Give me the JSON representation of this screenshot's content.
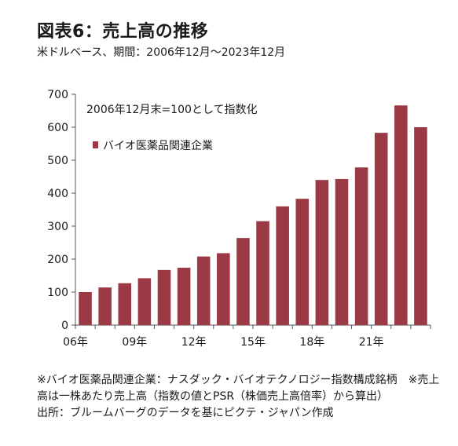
{
  "chart_data": {
    "type": "bar",
    "title": "図表6：売上高の推移",
    "subtitle": "米ドルベース、期間：2006年12月〜2023年12月",
    "annotation": "2006年12月末=100として指数化",
    "legend_position": "upper-left",
    "series": [
      {
        "name": "バイオ医薬品関連企業",
        "color": "#9b3a45",
        "values": [
          100,
          114,
          127,
          142,
          167,
          174,
          208,
          218,
          264,
          315,
          360,
          383,
          440,
          443,
          478,
          583,
          666,
          600
        ]
      }
    ],
    "x": [
      2006,
      2007,
      2008,
      2009,
      2010,
      2011,
      2012,
      2013,
      2014,
      2015,
      2016,
      2017,
      2018,
      2019,
      2020,
      2021,
      2022,
      2023
    ],
    "x_tick_labels": [
      {
        "index": 0,
        "label": "06年"
      },
      {
        "index": 3,
        "label": "09年"
      },
      {
        "index": 6,
        "label": "12年"
      },
      {
        "index": 9,
        "label": "15年"
      },
      {
        "index": 12,
        "label": "18年"
      },
      {
        "index": 15,
        "label": "21年"
      }
    ],
    "ylim": [
      0,
      700
    ],
    "yticks": [
      0,
      100,
      200,
      300,
      400,
      500,
      600,
      700
    ],
    "grid": false
  },
  "notes": {
    "line1": "※バイオ医薬品関連企業：ナスダック・バイオテクノロジー指数構成銘柄　※売上高は一株あたり売上高（指数の値とPSR（株価売上高倍率）から算出）",
    "line2": "出所：ブルームバーグのデータを基にピクテ・ジャパン作成"
  }
}
